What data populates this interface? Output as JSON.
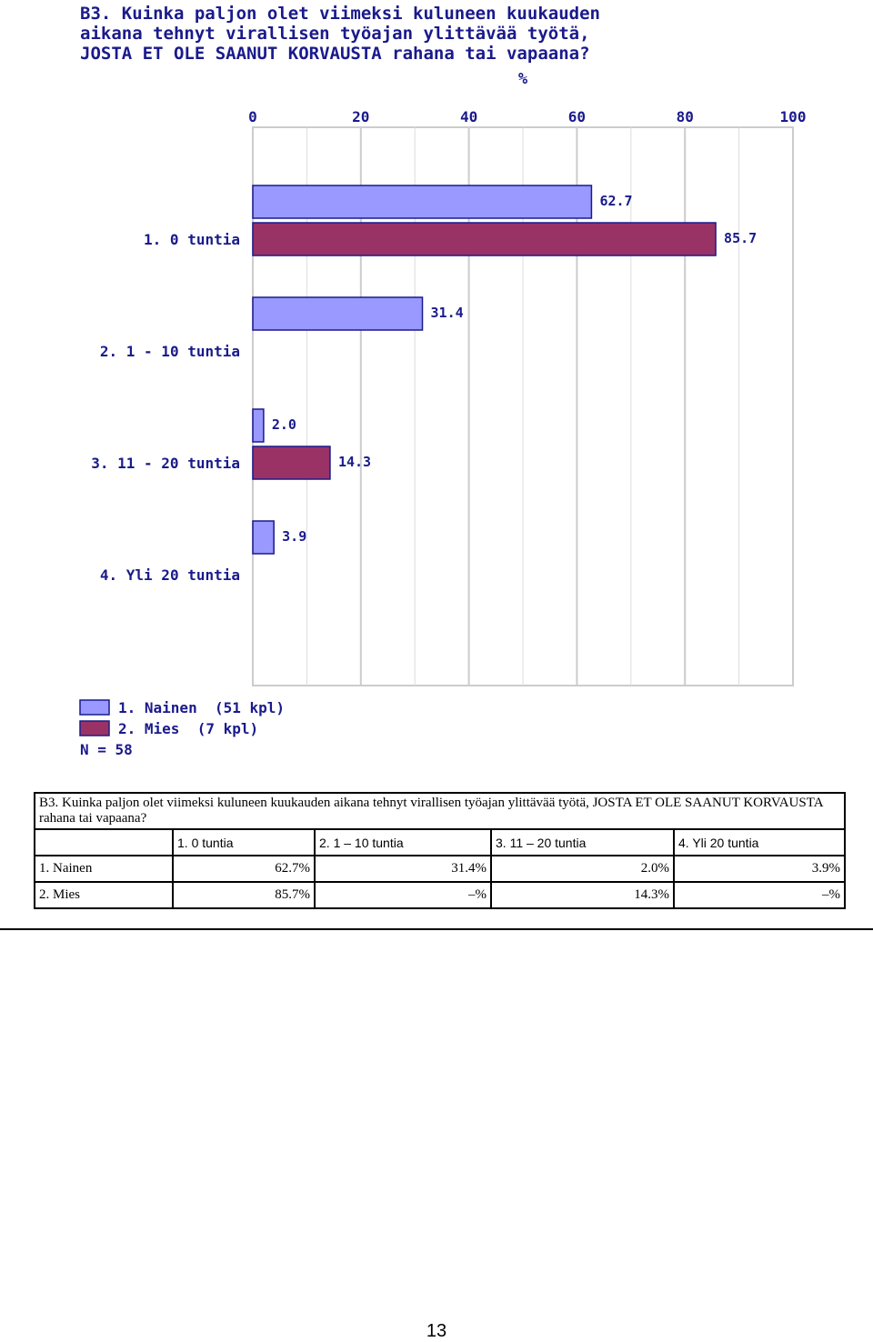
{
  "chart_data": {
    "type": "bar",
    "orientation": "horizontal",
    "title": "B3. Kuinka paljon olet viimeksi kuluneen kuukauden\naikana tehnyt virallisen työajan ylittävää työtä,\nJOSTA ET OLE SAANUT KORVAUSTA rahana tai vapaana?",
    "xlabel": "%",
    "xlim": [
      0,
      100
    ],
    "xticks": [
      "0",
      "20",
      "40",
      "60",
      "80",
      "100"
    ],
    "grid": true,
    "categories": [
      "1. 0 tuntia",
      "2. 1 - 10 tuntia",
      "3. 11 - 20 tuntia",
      "4. Yli 20 tuntia"
    ],
    "series": [
      {
        "name": "1. Nainen  (51 kpl)",
        "color": "#9999ff",
        "values": [
          62.7,
          31.4,
          2.0,
          3.9
        ],
        "labels": [
          "62.7",
          "31.4",
          "2.0",
          "3.9"
        ]
      },
      {
        "name": "2. Mies  (7 kpl)",
        "color": "#993366",
        "values": [
          85.7,
          null,
          14.3,
          null
        ],
        "labels": [
          "85.7",
          "",
          "14.3",
          ""
        ]
      }
    ],
    "legend_position": "bottom-left",
    "n_label": "N = 58"
  },
  "table": {
    "title": "B3. Kuinka paljon olet viimeksi kuluneen kuukauden aikana tehnyt virallisen työajan ylittävää työtä, JOSTA ET OLE SAANUT KORVAUSTA rahana tai vapaana?",
    "headers": [
      "1. 0 tuntia",
      "2. 1 – 10 tuntia",
      "3. 11 – 20 tuntia",
      "4. Yli 20 tuntia"
    ],
    "rows": [
      {
        "label": "1. Nainen",
        "cells": [
          "62.7%",
          "31.4%",
          "2.0%",
          "3.9%"
        ]
      },
      {
        "label": "2. Mies",
        "cells": [
          "85.7%",
          "–%",
          "14.3%",
          "–%"
        ]
      }
    ]
  },
  "page_number": "13"
}
